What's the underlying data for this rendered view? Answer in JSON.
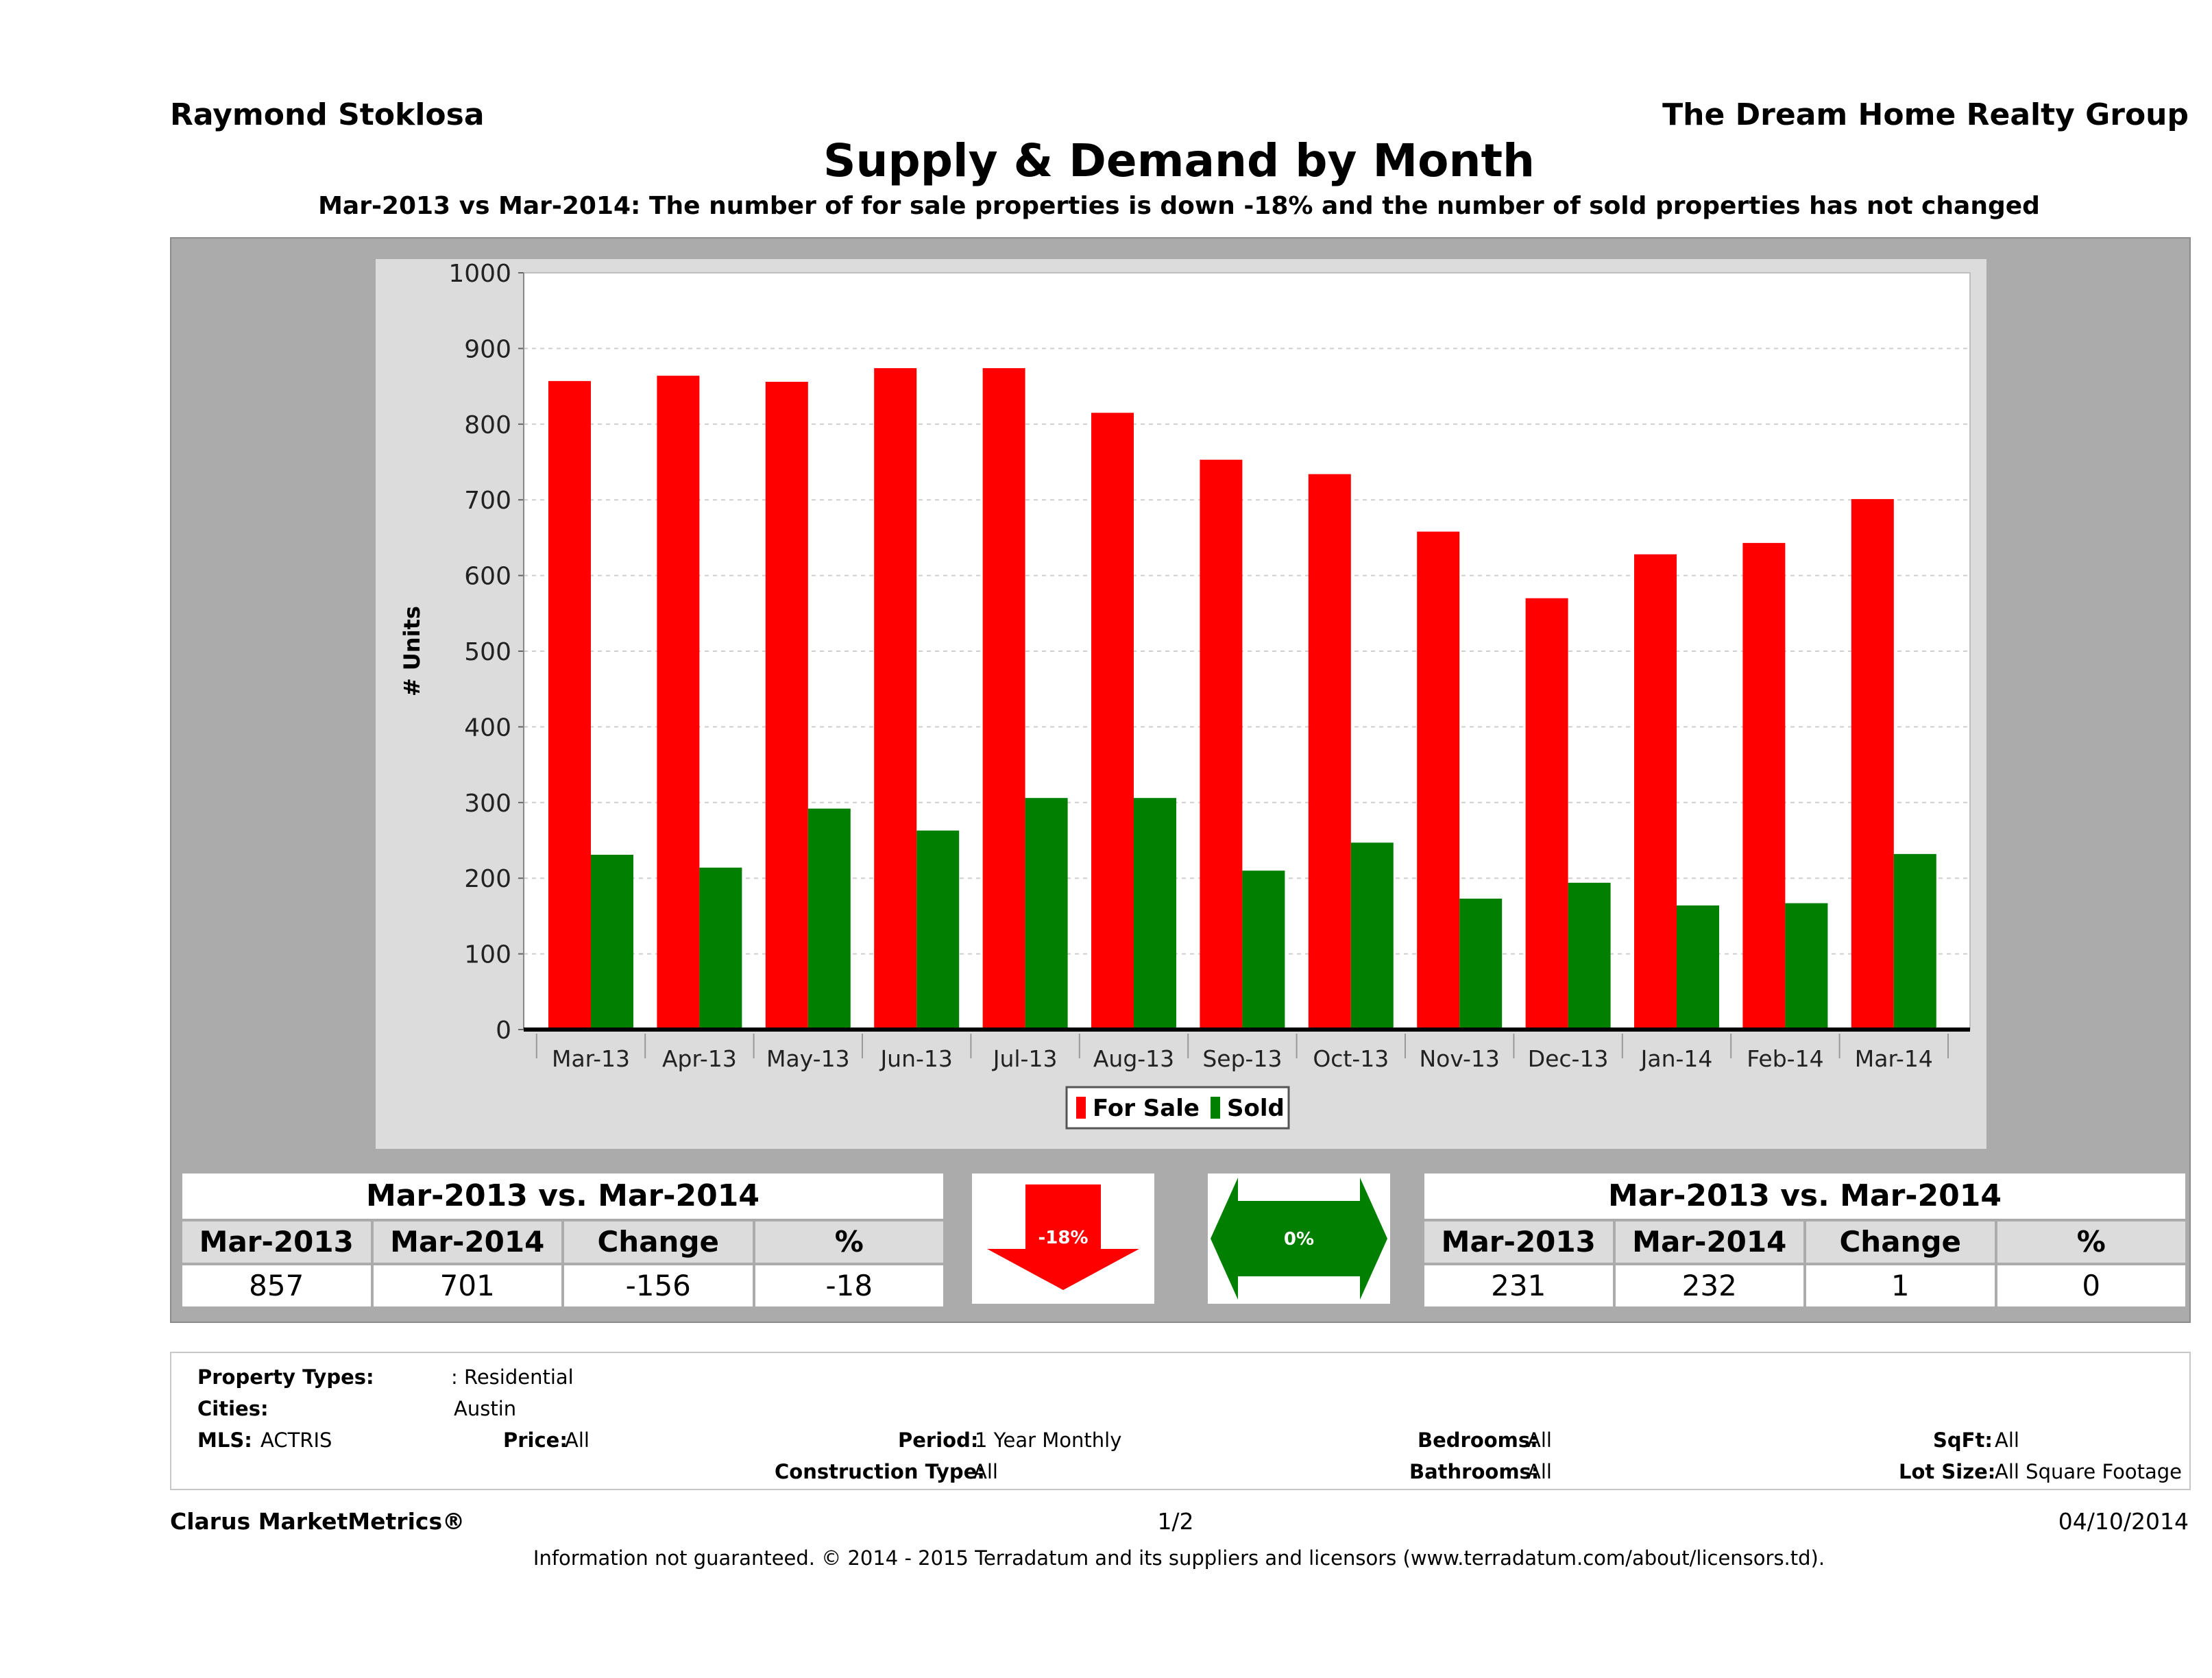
{
  "header": {
    "agent": "Raymond Stoklosa",
    "company": "The Dream Home Realty Group",
    "title": "Supply & Demand by Month",
    "subtitle": "Mar-2013 vs Mar-2014: The number of for sale properties is down -18% and the number of sold properties has not changed"
  },
  "chart_data": {
    "type": "bar",
    "categories": [
      "Mar-13",
      "Apr-13",
      "May-13",
      "Jun-13",
      "Jul-13",
      "Aug-13",
      "Sep-13",
      "Oct-13",
      "Nov-13",
      "Dec-13",
      "Jan-14",
      "Feb-14",
      "Mar-14"
    ],
    "series": [
      {
        "name": "For Sale",
        "color": "#ff0000",
        "values": [
          857,
          864,
          856,
          874,
          874,
          815,
          753,
          734,
          658,
          570,
          628,
          643,
          701
        ]
      },
      {
        "name": "Sold",
        "color": "#007f00",
        "values": [
          231,
          214,
          292,
          263,
          306,
          306,
          210,
          247,
          173,
          194,
          164,
          167,
          232
        ]
      }
    ],
    "ylabel": "# Units",
    "xlabel": "",
    "ylim": [
      0,
      1000
    ],
    "yticks": [
      "0",
      "100",
      "200",
      "300",
      "400",
      "500",
      "600",
      "700",
      "800",
      "900",
      "1000"
    ],
    "grid": true,
    "legend_position": "bottom-center"
  },
  "forsale_table": {
    "heading": "Mar-2013 vs. Mar-2014",
    "columns": [
      "Mar-2013",
      "Mar-2014",
      "Change",
      "%"
    ],
    "values": [
      "857",
      "701",
      "-156",
      "-18"
    ]
  },
  "sold_table": {
    "heading": "Mar-2013 vs. Mar-2014",
    "columns": [
      "Mar-2013",
      "Mar-2014",
      "Change",
      "%"
    ],
    "values": [
      "231",
      "232",
      "1",
      "0"
    ]
  },
  "indicators": {
    "forsale_change": "-18%",
    "forsale_color": "#ff0000",
    "sold_change": "0%",
    "sold_color": "#007f00"
  },
  "properties": {
    "property_types_label": "Property Types:",
    "property_types_value": ": Residential",
    "cities_label": "Cities:",
    "cities_value": "Austin",
    "mls_label": "MLS:",
    "mls_value": "ACTRIS",
    "price_label": "Price:",
    "price_value": "All",
    "period_label": "Period:",
    "period_value": "1 Year Monthly",
    "bedrooms_label": "Bedrooms:",
    "bedrooms_value": "All",
    "sqft_label": "SqFt:",
    "sqft_value": "All",
    "construction_label": "Construction Type:",
    "construction_value": "All",
    "bathrooms_label": "Bathrooms:",
    "bathrooms_value": "All",
    "lotsize_label": "Lot Size:",
    "lotsize_value": "All Square Footage"
  },
  "footer": {
    "brand": "Clarus MarketMetrics®",
    "page": "1/2",
    "date": "04/10/2014",
    "disclaimer": "Information not guaranteed. © 2014 - 2015 Terradatum and its suppliers and licensors (www.terradatum.com/about/licensors.td)."
  }
}
